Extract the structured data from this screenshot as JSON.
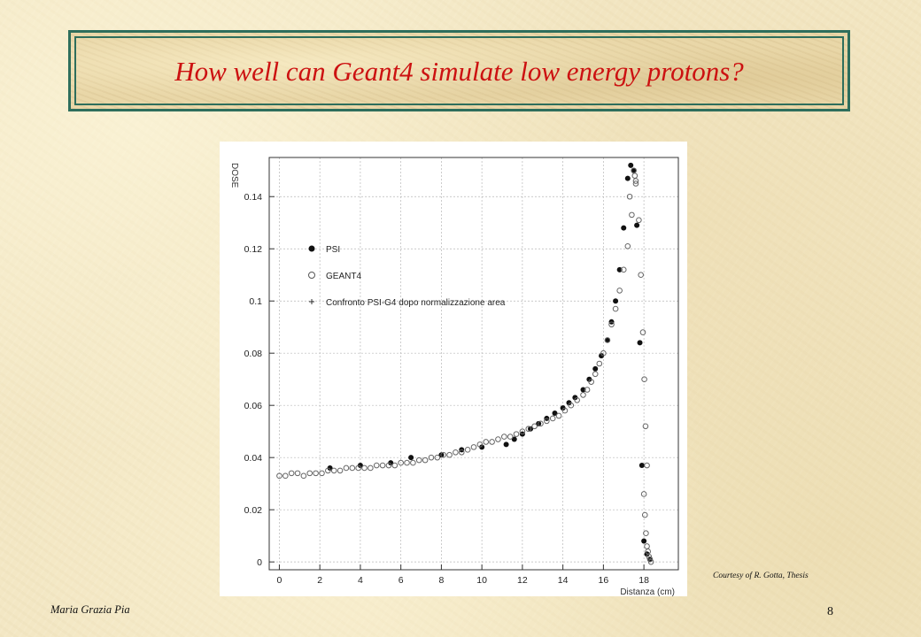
{
  "slide": {
    "title": "How well can Geant4 simulate low energy protons?",
    "courtesy": "Courtesy of R. Gotta, Thesis",
    "author": "Maria Grazia Pia",
    "page_number": "8"
  },
  "colors": {
    "title": "#cc1111",
    "title_border": "#2e6e5c",
    "background": "#f3e7c4"
  },
  "chart_data": {
    "type": "scatter",
    "ylabel": "DOSE",
    "xlabel": "Distanza (cm)",
    "xlim": [
      -0.5,
      19.7
    ],
    "ylim": [
      -0.003,
      0.155
    ],
    "x_ticks": [
      "0",
      "2",
      "4",
      "6",
      "8",
      "10",
      "12",
      "14",
      "16",
      "18"
    ],
    "y_ticks": [
      "0",
      "0.02",
      "0.04",
      "0.06",
      "0.08",
      "0.1",
      "0.12",
      "0.14"
    ],
    "grid": true,
    "legend": [
      {
        "label": "PSI",
        "marker": "filled-circle"
      },
      {
        "label": "GEANT4",
        "marker": "open-circle"
      },
      {
        "label": "Confronto PSI-G4 dopo normalizzazione area",
        "marker": "plus"
      }
    ],
    "series": [
      {
        "name": "PSI",
        "marker": "filled",
        "x": [
          2.5,
          4.0,
          5.5,
          6.5,
          8.0,
          9.0,
          10.0,
          11.2,
          11.6,
          12.0,
          12.4,
          12.8,
          13.2,
          13.6,
          14.0,
          14.3,
          14.6,
          15.0,
          15.3,
          15.6,
          15.9,
          16.2,
          16.4,
          16.6,
          16.8,
          17.0,
          17.2,
          17.35,
          17.5,
          17.65,
          17.8,
          17.9,
          18.0,
          18.15,
          18.3
        ],
        "y": [
          0.036,
          0.037,
          0.038,
          0.04,
          0.041,
          0.043,
          0.044,
          0.045,
          0.047,
          0.049,
          0.051,
          0.053,
          0.055,
          0.057,
          0.059,
          0.061,
          0.063,
          0.066,
          0.07,
          0.074,
          0.079,
          0.085,
          0.092,
          0.1,
          0.112,
          0.128,
          0.147,
          0.152,
          0.15,
          0.129,
          0.084,
          0.037,
          0.008,
          0.003,
          0.001
        ]
      },
      {
        "name": "GEANT4",
        "marker": "open",
        "x": [
          0.0,
          0.3,
          0.6,
          0.9,
          1.2,
          1.5,
          1.8,
          2.1,
          2.4,
          2.7,
          3.0,
          3.3,
          3.6,
          3.9,
          4.2,
          4.5,
          4.8,
          5.1,
          5.4,
          5.7,
          6.0,
          6.3,
          6.6,
          6.9,
          7.2,
          7.5,
          7.8,
          8.1,
          8.4,
          8.7,
          9.0,
          9.3,
          9.6,
          9.9,
          10.2,
          10.5,
          10.8,
          11.1,
          11.4,
          11.7,
          12.0,
          12.3,
          12.6,
          12.9,
          13.2,
          13.5,
          13.8,
          14.1,
          14.4,
          14.7,
          15.0,
          15.2,
          15.4,
          15.6,
          15.8,
          16.0,
          16.2,
          16.4,
          16.6,
          16.8,
          17.0,
          17.2,
          17.4,
          17.6,
          17.75,
          17.85,
          17.95,
          18.02,
          18.08,
          18.15
        ],
        "y": [
          0.033,
          0.033,
          0.034,
          0.034,
          0.033,
          0.034,
          0.034,
          0.034,
          0.035,
          0.035,
          0.035,
          0.036,
          0.036,
          0.036,
          0.036,
          0.036,
          0.037,
          0.037,
          0.037,
          0.037,
          0.038,
          0.038,
          0.038,
          0.039,
          0.039,
          0.04,
          0.04,
          0.041,
          0.041,
          0.042,
          0.042,
          0.043,
          0.044,
          0.045,
          0.046,
          0.046,
          0.047,
          0.048,
          0.048,
          0.049,
          0.05,
          0.051,
          0.052,
          0.053,
          0.054,
          0.055,
          0.056,
          0.058,
          0.06,
          0.062,
          0.064,
          0.066,
          0.069,
          0.072,
          0.076,
          0.08,
          0.085,
          0.091,
          0.097,
          0.104,
          0.112,
          0.121,
          0.133,
          0.146,
          0.131,
          0.11,
          0.088,
          0.07,
          0.052,
          0.037
        ]
      },
      {
        "name": "GEANT4",
        "marker": "open",
        "x": [
          17.3,
          17.5,
          17.55,
          17.6,
          18.0,
          18.05,
          18.1,
          18.15,
          18.2,
          18.25,
          18.3,
          18.35
        ],
        "y": [
          0.14,
          0.15,
          0.148,
          0.145,
          0.026,
          0.018,
          0.011,
          0.006,
          0.004,
          0.002,
          0.001,
          0.0
        ]
      }
    ]
  }
}
